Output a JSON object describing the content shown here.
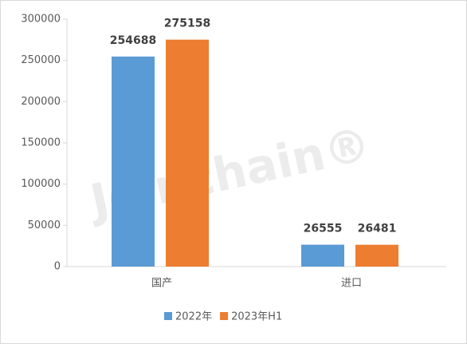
{
  "chart_data": {
    "type": "bar",
    "categories": [
      "国产",
      "进口"
    ],
    "series": [
      {
        "name": "2022年",
        "color": "#5b9bd5",
        "values": [
          254688,
          26555
        ]
      },
      {
        "name": "2023年H1",
        "color": "#ed7d31",
        "values": [
          275158,
          26481
        ]
      }
    ],
    "ylim": [
      0,
      300000
    ],
    "yticks": [
      0,
      50000,
      100000,
      150000,
      200000,
      250000,
      300000
    ],
    "grid": false,
    "legend": "bottom",
    "watermark": "Joinchain®"
  }
}
